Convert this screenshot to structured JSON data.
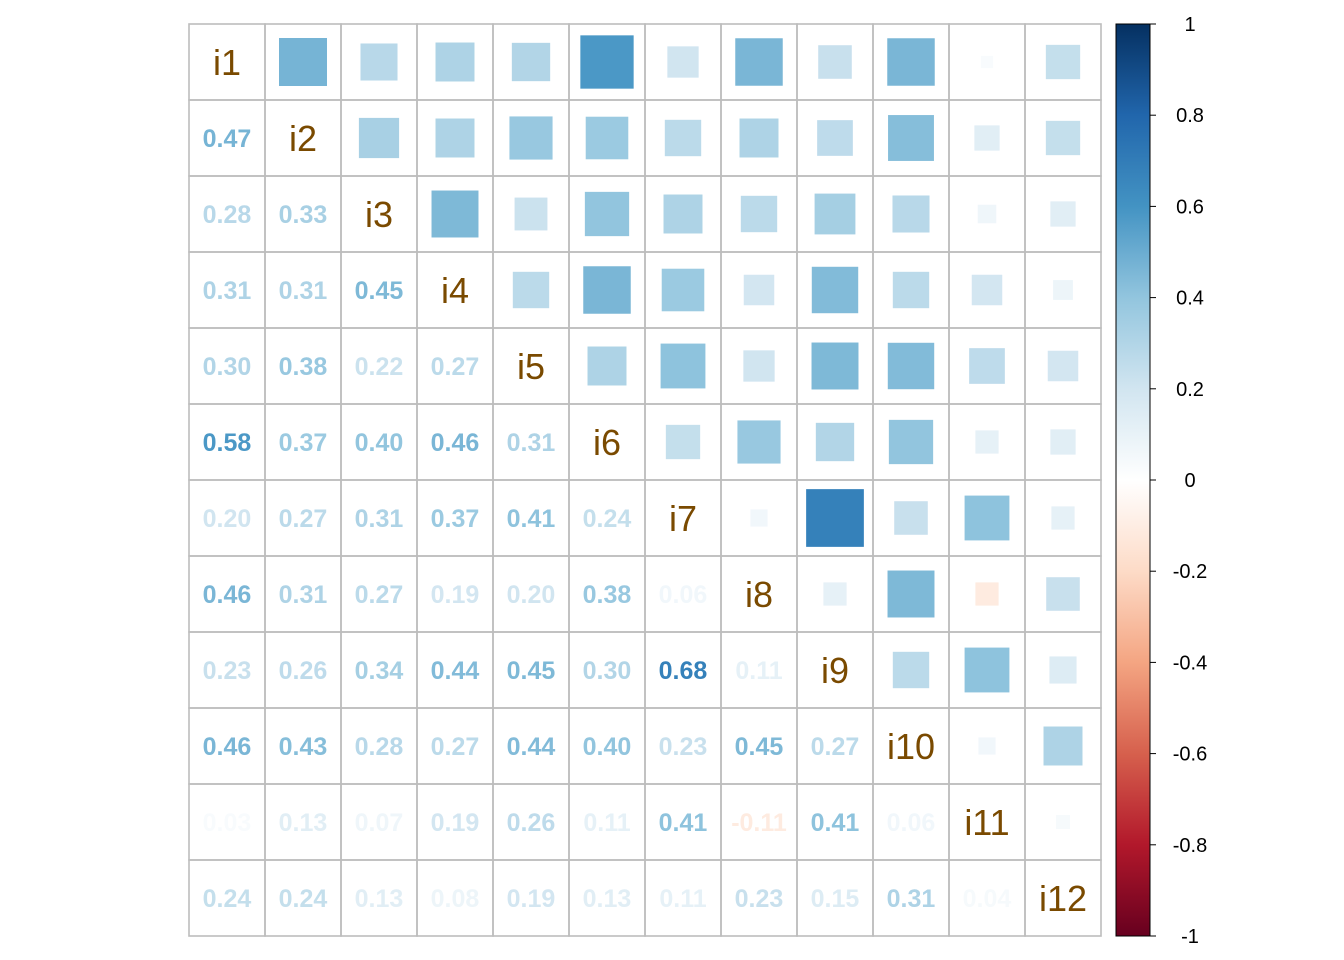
{
  "chart_data": {
    "type": "heatmap",
    "title": "",
    "variables": [
      "i1",
      "i2",
      "i3",
      "i4",
      "i5",
      "i6",
      "i7",
      "i8",
      "i9",
      "i10",
      "i11",
      "i12"
    ],
    "matrix": [
      [
        1.0,
        0.47,
        0.28,
        0.31,
        0.3,
        0.58,
        0.2,
        0.46,
        0.23,
        0.46,
        0.03,
        0.24
      ],
      [
        0.47,
        1.0,
        0.33,
        0.31,
        0.38,
        0.37,
        0.27,
        0.31,
        0.26,
        0.43,
        0.13,
        0.24
      ],
      [
        0.28,
        0.33,
        1.0,
        0.45,
        0.22,
        0.4,
        0.31,
        0.27,
        0.34,
        0.28,
        0.07,
        0.13
      ],
      [
        0.31,
        0.31,
        0.45,
        1.0,
        0.27,
        0.46,
        0.37,
        0.19,
        0.44,
        0.27,
        0.19,
        0.08
      ],
      [
        0.3,
        0.38,
        0.22,
        0.27,
        1.0,
        0.31,
        0.41,
        0.2,
        0.45,
        0.44,
        0.26,
        0.19
      ],
      [
        0.58,
        0.37,
        0.4,
        0.46,
        0.31,
        1.0,
        0.24,
        0.38,
        0.3,
        0.4,
        0.11,
        0.13
      ],
      [
        0.2,
        0.27,
        0.31,
        0.37,
        0.41,
        0.24,
        1.0,
        0.06,
        0.68,
        0.23,
        0.41,
        0.11
      ],
      [
        0.46,
        0.31,
        0.27,
        0.19,
        0.2,
        0.38,
        0.06,
        1.0,
        0.11,
        0.45,
        -0.11,
        0.23
      ],
      [
        0.23,
        0.26,
        0.34,
        0.44,
        0.45,
        0.3,
        0.68,
        0.11,
        1.0,
        0.27,
        0.41,
        0.15
      ],
      [
        0.46,
        0.43,
        0.28,
        0.27,
        0.44,
        0.4,
        0.23,
        0.45,
        0.27,
        1.0,
        0.06,
        0.31
      ],
      [
        0.03,
        0.13,
        0.07,
        0.19,
        0.26,
        0.11,
        0.41,
        -0.11,
        0.41,
        0.06,
        1.0,
        0.04
      ],
      [
        0.24,
        0.24,
        0.13,
        0.08,
        0.19,
        0.13,
        0.11,
        0.23,
        0.15,
        0.31,
        0.04,
        1.0
      ]
    ],
    "lower": "number",
    "upper": "square",
    "number_format": "0.00",
    "colorbar": {
      "range": [
        -1,
        1
      ],
      "ticks": [
        1,
        0.8,
        0.6,
        0.4,
        0.2,
        0,
        -0.2,
        -0.4,
        -0.6,
        -0.8,
        -1
      ],
      "tick_labels": [
        "1",
        "0.8",
        "0.6",
        "0.4",
        "0.2",
        "0",
        "-0.2",
        "-0.4",
        "-0.6",
        "-0.8",
        "-1"
      ],
      "colors": [
        "#67001F",
        "#B2182B",
        "#D6604D",
        "#F4A582",
        "#FDDBC7",
        "#FFFFFF",
        "#D1E5F0",
        "#92C5DE",
        "#4393C3",
        "#2166AC",
        "#053061"
      ],
      "placement": "right"
    },
    "label_color": "#7a4a00",
    "grid": true
  }
}
